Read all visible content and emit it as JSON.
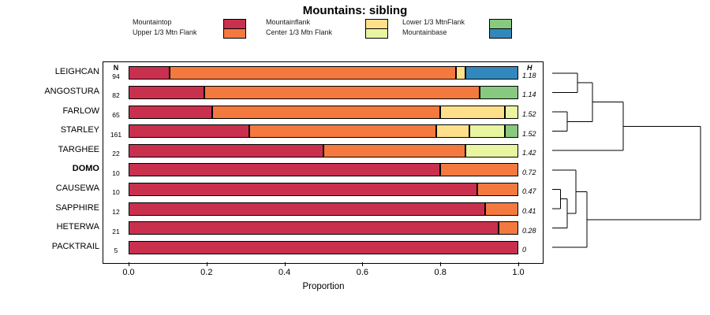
{
  "title": "Mountains: sibling",
  "columns": {
    "n_header": "N",
    "h_header": "H"
  },
  "axis": {
    "xlabel": "Proportion",
    "ticks": [
      "0.0",
      "0.2",
      "0.4",
      "0.6",
      "0.8",
      "1.0"
    ],
    "tick_values": [
      0,
      0.2,
      0.4,
      0.6,
      0.8,
      1.0
    ]
  },
  "legend": {
    "position": "top",
    "columns": [
      {
        "labels": [
          "Mountaintop",
          "Upper 1/3 Mtn Flank"
        ],
        "colors": [
          "#C9304E",
          "#F4793F"
        ]
      },
      {
        "labels": [
          "Mountainflank",
          "Center 1/3 Mtn Flank"
        ],
        "colors": [
          "#FEE08B",
          "#E9F5A0"
        ]
      },
      {
        "labels": [
          "Lower 1/3 MtnFlank",
          "Mountainbase"
        ],
        "colors": [
          "#86C97F",
          "#3288BD"
        ]
      }
    ]
  },
  "chart_data": {
    "type": "bar",
    "orientation": "horizontal",
    "stacked": true,
    "title": "Mountains: sibling",
    "xlabel": "Proportion",
    "xlim": [
      0,
      1
    ],
    "grid": false,
    "legend_position": "top",
    "segment_names": [
      "Mountaintop",
      "Upper 1/3 Mtn Flank",
      "Mountainflank",
      "Center 1/3 Mtn Flank",
      "Lower 1/3 MtnFlank",
      "Mountainbase"
    ],
    "segment_colors": [
      "#C9304E",
      "#F4793F",
      "#FEE08B",
      "#E9F5A0",
      "#86C97F",
      "#3288BD"
    ],
    "rows": [
      {
        "name": "LEIGHCAN",
        "n": 94,
        "h": "1.18",
        "bold": false,
        "values": [
          0.105,
          0.735,
          0.025,
          0,
          0,
          0.135
        ]
      },
      {
        "name": "ANGOSTURA",
        "n": 82,
        "h": "1.14",
        "bold": false,
        "values": [
          0.195,
          0.705,
          0,
          0,
          0.1,
          0
        ]
      },
      {
        "name": "FARLOW",
        "n": 65,
        "h": "1.52",
        "bold": false,
        "values": [
          0.215,
          0.585,
          0.165,
          0.035,
          0,
          0
        ]
      },
      {
        "name": "STARLEY",
        "n": 161,
        "h": "1.52",
        "bold": false,
        "values": [
          0.31,
          0.48,
          0.085,
          0.09,
          0.035,
          0
        ]
      },
      {
        "name": "TARGHEE",
        "n": 22,
        "h": "1.42",
        "bold": false,
        "values": [
          0.5,
          0.365,
          0,
          0.135,
          0,
          0
        ]
      },
      {
        "name": "DOMO",
        "n": 10,
        "h": "0.72",
        "bold": true,
        "values": [
          0.8,
          0.2,
          0,
          0,
          0,
          0
        ]
      },
      {
        "name": "CAUSEWA",
        "n": 10,
        "h": "0.47",
        "bold": false,
        "values": [
          0.895,
          0.105,
          0,
          0,
          0,
          0
        ]
      },
      {
        "name": "SAPPHIRE",
        "n": 12,
        "h": "0.41",
        "bold": false,
        "values": [
          0.915,
          0.085,
          0,
          0,
          0,
          0
        ]
      },
      {
        "name": "HETERWA",
        "n": 21,
        "h": "0.28",
        "bold": false,
        "values": [
          0.95,
          0.05,
          0,
          0,
          0,
          0
        ]
      },
      {
        "name": "PACKTRAIL",
        "n": 5,
        "h": "0",
        "bold": false,
        "values": [
          1.0,
          0,
          0,
          0,
          0,
          0
        ]
      }
    ],
    "dendrogram": {
      "note": "leaves are node ids 0-9 (row order top to bottom); each merge appends a new node id starting at 10; h is merge height normalized 0-1",
      "merges": [
        {
          "a": 2,
          "b": 3,
          "h": 0.1
        },
        {
          "a": 0,
          "b": 1,
          "h": 0.17
        },
        {
          "a": 11,
          "b": 10,
          "h": 0.27
        },
        {
          "a": 12,
          "b": 4,
          "h": 0.48
        },
        {
          "a": 6,
          "b": 7,
          "h": 0.055
        },
        {
          "a": 14,
          "b": 8,
          "h": 0.1
        },
        {
          "a": 5,
          "b": 15,
          "h": 0.16
        },
        {
          "a": 16,
          "b": 9,
          "h": 0.235
        },
        {
          "a": 13,
          "b": 17,
          "h": 1.0
        }
      ]
    }
  }
}
